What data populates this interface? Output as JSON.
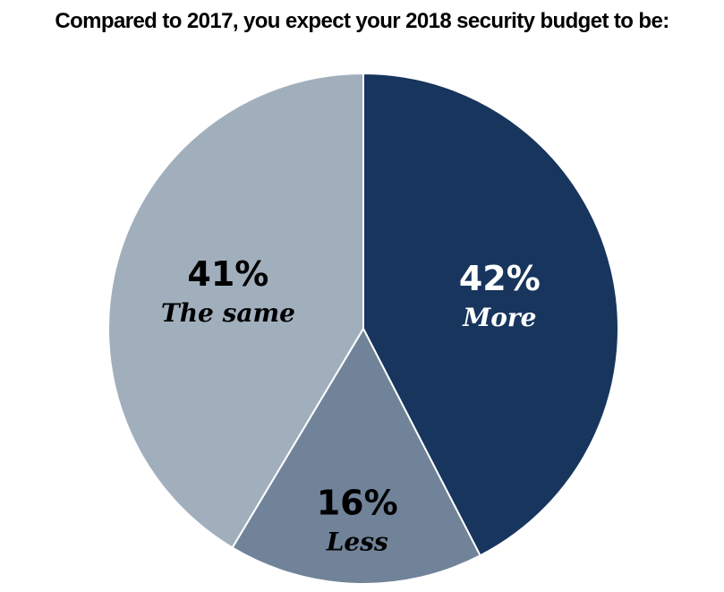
{
  "chart_data": {
    "type": "pie",
    "title": "Compared to 2017, you expect your 2018 security budget to be:",
    "slices": [
      {
        "label": "More",
        "value": 42,
        "value_label": "42%",
        "color": "#17355d",
        "text_color": "#ffffff"
      },
      {
        "label": "Less",
        "value": 16,
        "value_label": "16%",
        "color": "#708399",
        "text_color": "#000000"
      },
      {
        "label": "The same",
        "value": 41,
        "value_label": "41%",
        "color": "#a1afbd",
        "text_color": "#000000"
      }
    ],
    "start_angle": "12 o'clock, clockwise"
  }
}
